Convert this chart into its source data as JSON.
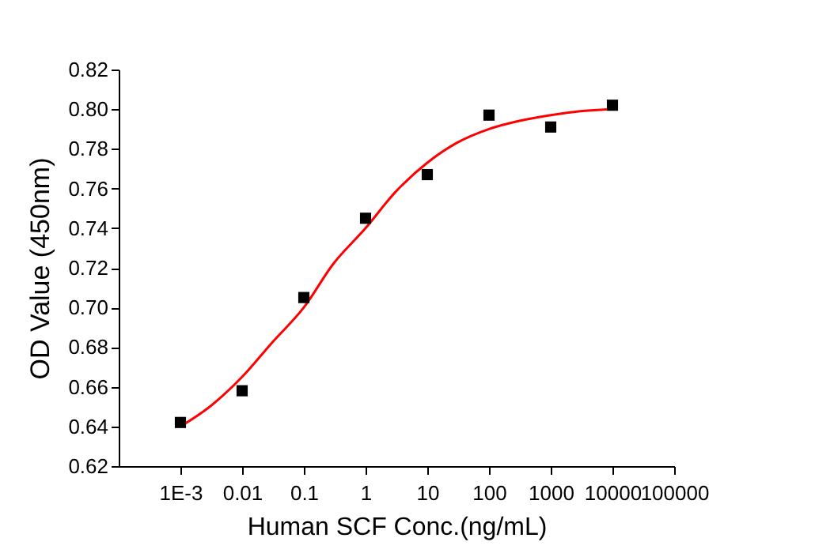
{
  "chart_data": {
    "type": "scatter",
    "xlabel": "Human SCF Conc.(ng/mL)",
    "ylabel": "OD Value (450nm)",
    "log": "x",
    "grid": false,
    "marker": "square",
    "xlim": [
      0.0001,
      100000
    ],
    "xticks": [
      {
        "value": 0.001,
        "label": "1E-3"
      },
      0.01,
      0.1,
      1,
      10,
      100,
      1000,
      10000,
      100000
    ],
    "ylim": [
      0.62,
      0.82
    ],
    "yticks": [
      0.62,
      0.64,
      0.66,
      0.68,
      {
        "value": 0.7,
        "label": "0.70"
      },
      0.72,
      0.74,
      0.76,
      0.78,
      {
        "value": 0.8,
        "label": "0.80"
      },
      0.82
    ],
    "series": [
      {
        "color": "#000000",
        "x": [
          0.001,
          0.01,
          0.1,
          1,
          10,
          100,
          1000,
          10000
        ],
        "values": [
          0.642,
          0.658,
          0.705,
          0.745,
          0.767,
          0.797,
          0.791,
          0.802
        ]
      },
      {
        "type": "line",
        "color": "#ff0000",
        "marker": "none",
        "line_style": "solid",
        "x": [
          0.001,
          0.003,
          0.01,
          0.03,
          0.1,
          0.3,
          1,
          3,
          10,
          30,
          100,
          300,
          1000,
          3000,
          10000
        ],
        "values": [
          0.64,
          0.65,
          0.665,
          0.682,
          0.7,
          0.722,
          0.74,
          0.758,
          0.773,
          0.783,
          0.79,
          0.794,
          0.797,
          0.799,
          0.8
        ]
      }
    ]
  }
}
